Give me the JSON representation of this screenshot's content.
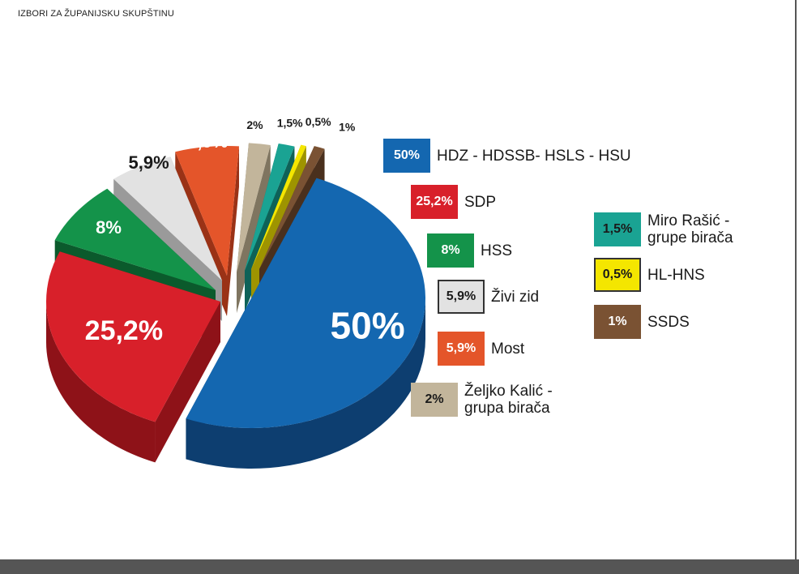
{
  "page": {
    "title": "IZBORI ZA ŽUPANIJSKU SKUPŠTINU"
  },
  "chart_data": {
    "type": "pie",
    "title": "IZBORI ZA ŽUPANIJSKU SKUPŠTINU",
    "slices": [
      {
        "key": "hdz",
        "label": "HDZ - HDSSB- HSLS - HSU",
        "value": 50,
        "value_label": "50%",
        "color": "#1467b0",
        "side": "#0d3e70",
        "text_color": "#ffffff"
      },
      {
        "key": "sdp",
        "label": "SDP",
        "value": 25.2,
        "value_label": "25,2%",
        "color": "#d8202a",
        "side": "#8e1218",
        "text_color": "#ffffff"
      },
      {
        "key": "hss",
        "label": "HSS",
        "value": 8,
        "value_label": "8%",
        "color": "#14934a",
        "side": "#0b5a2c",
        "text_color": "#ffffff"
      },
      {
        "key": "zivi",
        "label": "Živi zid",
        "value": 5.9,
        "value_label": "5,9%",
        "color": "#e2e2e2",
        "side": "#9a9a9a",
        "text_color": "#1a1a1a"
      },
      {
        "key": "most",
        "label": "Most",
        "value": 5.9,
        "value_label": "5,9%",
        "color": "#e4552a",
        "side": "#9a3216",
        "text_color": "#ffffff"
      },
      {
        "key": "kalic",
        "label": "Željko Kalić -\ngrupa birača",
        "value": 2,
        "value_label": "2%",
        "color": "#c2b59b",
        "side": "#7f7560",
        "text_color": "#1a1a1a"
      },
      {
        "key": "rasic",
        "label": "Miro Rašić -\ngrupe birača",
        "value": 1.5,
        "value_label": "1,5%",
        "color": "#1aa393",
        "side": "#0e6258",
        "text_color": "#1a1a1a"
      },
      {
        "key": "hlhns",
        "label": "HL-HNS",
        "value": 0.5,
        "value_label": "0,5%",
        "color": "#f4e600",
        "side": "#9e9400",
        "text_color": "#1a1a1a"
      },
      {
        "key": "ssds",
        "label": "SSDS",
        "value": 1,
        "value_label": "1%",
        "color": "#7a5233",
        "side": "#4a301d",
        "text_color": "#ffffff"
      }
    ]
  }
}
